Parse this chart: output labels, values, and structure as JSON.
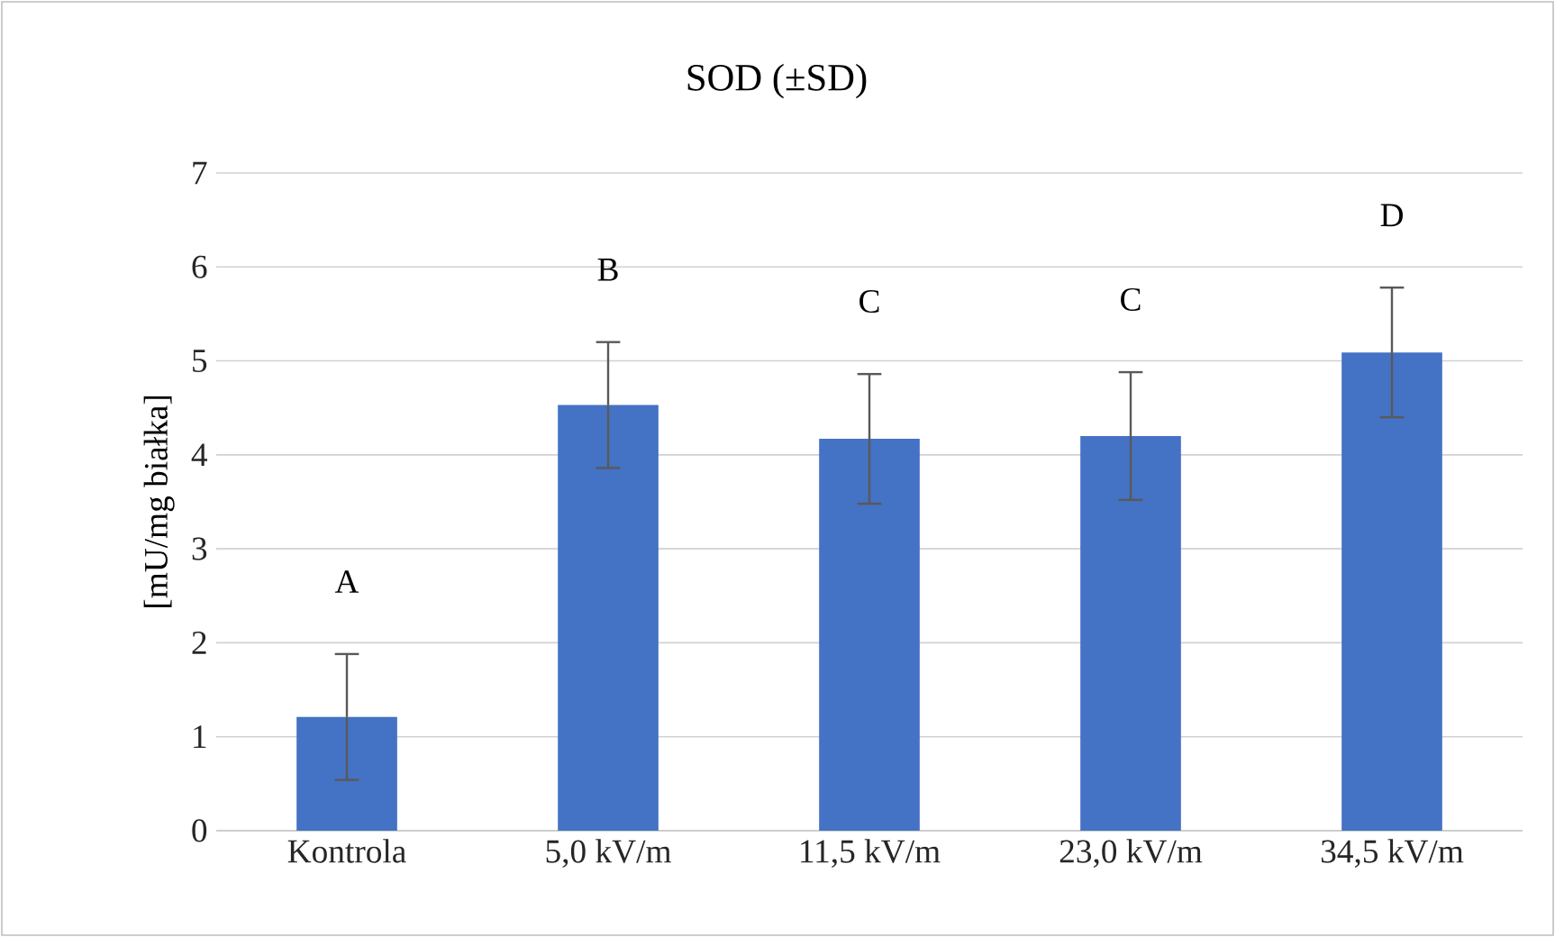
{
  "chart_data": {
    "type": "bar",
    "title": "SOD (±SD)",
    "ylabel": "[mU/mg białka]",
    "categories": [
      "Kontrola",
      "5,0 kV/m",
      "11,5 kV/m",
      "23,0 kV/m",
      "34,5 kV/m"
    ],
    "values": [
      1.21,
      4.53,
      4.17,
      4.2,
      5.09
    ],
    "errors": [
      0.67,
      0.67,
      0.69,
      0.68,
      0.69
    ],
    "color": "#4472c4",
    "ylim": [
      0,
      7
    ],
    "yticks": [
      0,
      1,
      2,
      3,
      4,
      5,
      6,
      7
    ],
    "grid": "y",
    "annotations": [
      "A",
      "B",
      "C",
      "C",
      "D"
    ]
  }
}
